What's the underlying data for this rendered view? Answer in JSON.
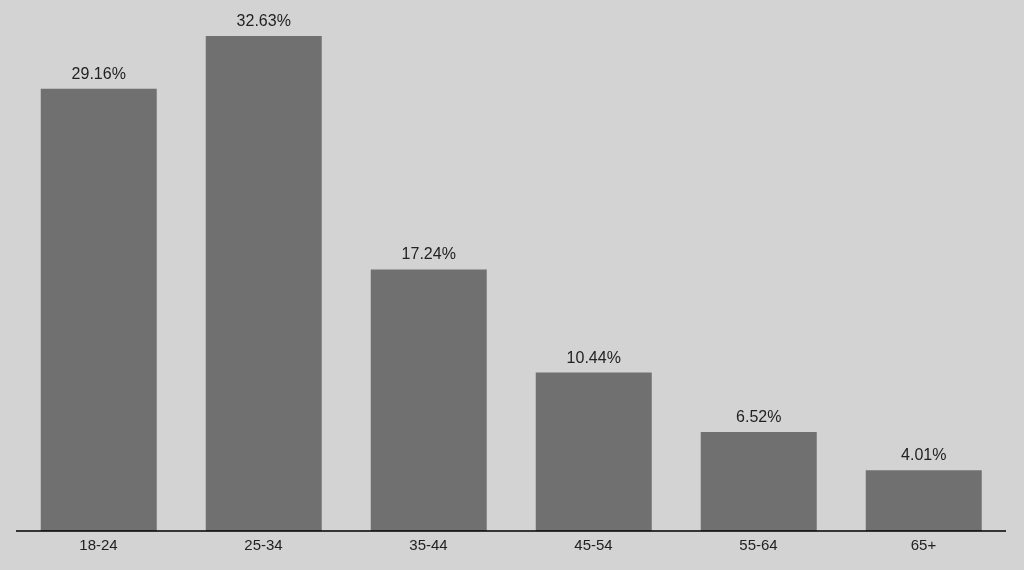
{
  "chart_data": {
    "type": "bar",
    "categories": [
      "18-24",
      "25-34",
      "35-44",
      "45-54",
      "55-64",
      "65+"
    ],
    "values": [
      29.16,
      32.63,
      17.24,
      10.44,
      6.52,
      4.01
    ],
    "value_labels": [
      "29.16%",
      "32.63%",
      "17.24%",
      "10.44%",
      "6.52%",
      "4.01%"
    ],
    "color": "#6f706f"
  }
}
